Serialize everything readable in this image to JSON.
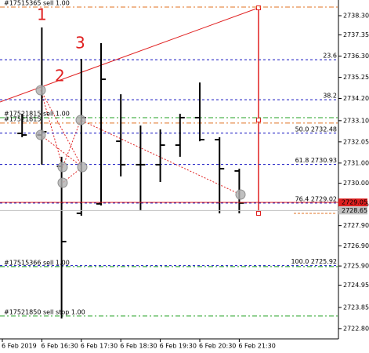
{
  "chart_data": {
    "type": "ohlc",
    "categories": [
      "6 Feb 2019",
      null,
      "6 Feb 16:30",
      null,
      "6 Feb 17:30",
      null,
      "6 Feb 18:30",
      null,
      "6 Feb 19:30",
      null,
      "6 Feb 20:30",
      null,
      "6 Feb 21:30"
    ],
    "open": [
      null,
      2732.47,
      2732.39,
      2730.84,
      2728.51,
      2728.98,
      2732.08,
      2730.92,
      2730.92,
      2731.89,
      2733.25,
      2732.16,
      2730.61
    ],
    "high": [
      null,
      2733.44,
      2737.72,
      2731.31,
      2736.16,
      2736.94,
      2734.41,
      2732.86,
      2732.67,
      2733.44,
      2734.99,
      2732.28,
      2730.72
    ],
    "low": [
      null,
      2732.28,
      2730.92,
      2723.3,
      2728.39,
      2728.9,
      2730.34,
      2728.67,
      2730.06,
      2731.31,
      2732.08,
      2728.51,
      2728.51
    ],
    "close": [
      null,
      2732.39,
      2732.55,
      2727.11,
      2733.25,
      2735.15,
      2730.92,
      2730.92,
      2731.89,
      2733.25,
      2732.16,
      2730.72,
      2729.02
    ],
    "color": "#000000",
    "ylim": [
      2722.29,
      2739.0
    ],
    "yticks": [
      {
        "value": 2738.3,
        "label": "2738.30"
      },
      {
        "value": 2737.35,
        "label": "2737.35"
      },
      {
        "value": 2736.3,
        "label": "2736.30"
      },
      {
        "value": 2735.25,
        "label": "2735.25"
      },
      {
        "value": 2734.2,
        "label": "2734.20"
      },
      {
        "value": 2733.1,
        "label": "2733.10"
      },
      {
        "value": 2732.05,
        "label": "2732.05"
      },
      {
        "value": 2731.0,
        "label": "2731.00"
      },
      {
        "value": 2730.0,
        "label": "2730.00"
      },
      {
        "value": 2728.95,
        "label": "2728.95"
      },
      {
        "value": 2727.9,
        "label": "2727.90"
      },
      {
        "value": 2726.9,
        "label": "2726.90"
      },
      {
        "value": 2725.9,
        "label": "2725.90"
      },
      {
        "value": 2724.95,
        "label": "2724.95"
      },
      {
        "value": 2723.85,
        "label": "2723.85"
      },
      {
        "value": 2722.8,
        "label": "2722.80"
      }
    ],
    "fib_levels": [
      {
        "label": "23.6",
        "value": 2736.12
      },
      {
        "label": "38.2",
        "value": 2734.14
      },
      {
        "label": "50.0  2732.48",
        "value": 2732.48
      },
      {
        "label": "61.8  2730.93",
        "value": 2730.93
      },
      {
        "label": "76.4  2729.02",
        "value": 2729.02
      },
      {
        "label": "100.0  2725.92",
        "value": 2725.92
      }
    ],
    "fib_color": "#1010c0",
    "orders": [
      {
        "label": "#17515365 sell 1.00",
        "value": 2738.73,
        "color": "#e07020"
      },
      {
        "label": "#17521815 sell 1.00",
        "value": 2733.25,
        "color": "#20a020"
      },
      {
        "label": "#17521815",
        "value": 2732.98,
        "color": "#e07020"
      },
      {
        "label": "#17515366 sell 1.00",
        "value": 2725.87,
        "color": "#20a020"
      },
      {
        "label": "#17521850 sell stop 1.00",
        "value": 2723.42,
        "color": "#20a020"
      }
    ],
    "price_tags": [
      {
        "value": 2729.05,
        "color": "#e02020"
      },
      {
        "value": 2728.65,
        "color": "#c0c0c0"
      }
    ],
    "annotations": [
      "1",
      "2",
      "3"
    ]
  }
}
